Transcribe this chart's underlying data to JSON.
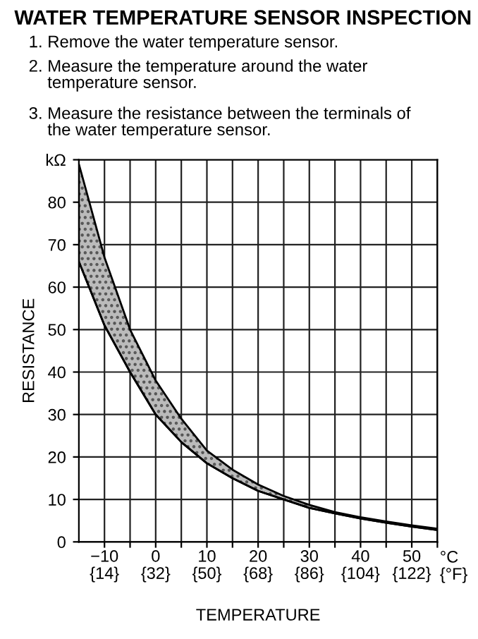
{
  "chart_data": {
    "type": "line",
    "title": "WATER TEMPERATURE SENSOR INSPECTION",
    "annotations": [
      "1. Remove the water temperature sensor.",
      "2. Measure the temperature around the water\n    temperature sensor.",
      "3. Measure the resistance between the terminals of\n    the water temperature sensor.",
      "°C",
      "{°F}"
    ],
    "xlabel": "TEMPERATURE",
    "ylabel": "RESISTANCE",
    "x": [
      -15,
      -10,
      -5,
      0,
      5,
      10,
      15,
      20,
      25,
      30,
      35,
      40,
      45,
      50,
      55
    ],
    "series": [
      {
        "color": "#000000",
        "values": [
          66,
          51,
          40,
          30,
          23.5,
          18.5,
          15,
          12,
          10,
          8,
          6.7,
          5.5,
          4.5,
          3.6,
          2.8
        ],
        "lower": [
          66,
          51,
          40,
          30,
          23.5,
          18.5,
          15,
          12,
          10,
          8,
          6.7,
          5.5,
          4.5,
          3.6,
          2.8
        ],
        "upper": [
          89,
          67,
          50,
          38,
          29,
          21.5,
          17,
          13.5,
          10.8,
          8.7,
          7.0,
          5.8,
          4.8,
          3.9,
          3.1
        ]
      }
    ],
    "xlim": [
      -15,
      55
    ],
    "ylim": [
      0,
      90
    ],
    "xticks": [
      {
        "value": -10,
        "label": "−10"
      },
      {
        "value": -5,
        "label": null
      },
      0,
      {
        "value": 5,
        "label": null
      },
      10,
      {
        "value": 15,
        "label": null
      },
      20,
      {
        "value": 25,
        "label": null
      },
      30,
      {
        "value": 35,
        "label": null
      },
      40,
      {
        "value": 45,
        "label": null
      },
      50,
      {
        "value": 55,
        "label": null
      }
    ],
    "x2lim": [
      5,
      131
    ],
    "x2ticks": [
      {
        "value": 14,
        "label": "{14}"
      },
      {
        "value": 32,
        "label": "{32}"
      },
      {
        "value": 50,
        "label": "{50}"
      },
      {
        "value": 68,
        "label": "{68}"
      },
      {
        "value": 86,
        "label": "{86}"
      },
      {
        "value": 104,
        "label": "{104}"
      },
      {
        "value": 122,
        "label": "{122}"
      }
    ],
    "yticks": [
      0,
      10,
      20,
      30,
      40,
      50,
      60,
      70,
      80,
      {
        "value": 90,
        "label": "kΩ"
      }
    ],
    "grid": true,
    "marker": "none",
    "line_style": "solid"
  }
}
